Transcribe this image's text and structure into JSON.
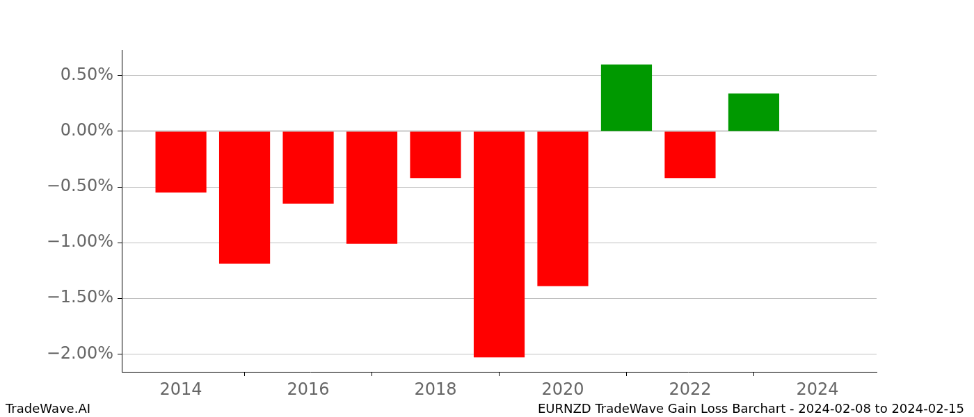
{
  "chart_data": {
    "type": "bar",
    "title": "EURNZD TradeWave Gain Loss Barchart - 2024-02-08 to 2024-02-15",
    "annotations": [
      "TradeWave.AI"
    ],
    "x": [
      2014,
      2015,
      2016,
      2017,
      2018,
      2019,
      2020,
      2021,
      2022,
      2023
    ],
    "values": [
      -0.55,
      -1.19,
      -0.65,
      -1.01,
      -0.42,
      -2.03,
      -1.39,
      0.6,
      -0.42,
      0.34
    ],
    "colors": [
      "#ff0000",
      "#ff0000",
      "#ff0000",
      "#ff0000",
      "#ff0000",
      "#ff0000",
      "#ff0000",
      "#009900",
      "#ff0000",
      "#009900"
    ],
    "xlim": [
      2013.07,
      2024.93
    ],
    "xticks": [
      2014,
      2016,
      2018,
      2020,
      2022,
      2024
    ],
    "ylim": [
      -2.16,
      0.73
    ],
    "yticks": [
      {
        "value": 0.5,
        "label": "0.50%"
      },
      {
        "value": 0,
        "label": "0.00%"
      },
      {
        "value": -0.5,
        "label": "−0.50%"
      },
      {
        "value": -1,
        "label": "−1.00%"
      },
      {
        "value": -1.5,
        "label": "−1.50%"
      },
      {
        "value": -2,
        "label": "−2.00%"
      }
    ],
    "grid": "y"
  }
}
